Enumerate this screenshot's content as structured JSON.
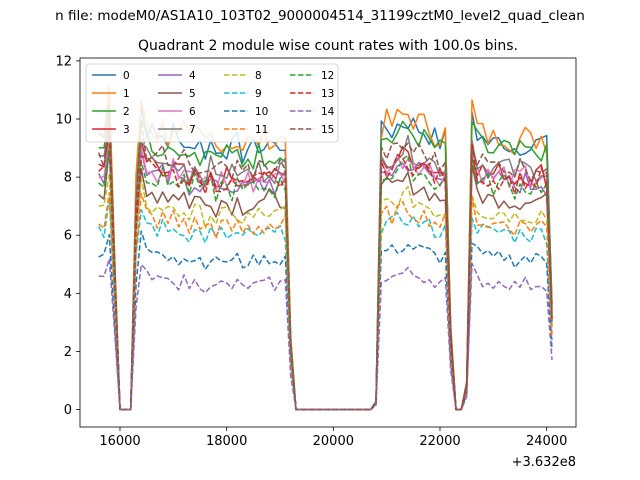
{
  "chart_data": {
    "type": "line",
    "suptitle": "n file: modeM0/AS1A10_103T02_9000004514_31199cztM0_level2_quad_clean",
    "title": "Quadrant 2 module wise count rates with 100.0s bins.",
    "xlabel": "",
    "ylabel": "",
    "x_offset_label": "+3.632e8",
    "xlim": [
      15250,
      24550
    ],
    "ylim": [
      -0.6,
      12.1
    ],
    "xticks": [
      16000,
      18000,
      20000,
      22000,
      24000
    ],
    "xtick_labels": [
      "16000",
      "18000",
      "20000",
      "22000",
      "24000"
    ],
    "yticks": [
      0,
      2,
      4,
      6,
      8,
      10,
      12
    ],
    "ytick_labels": [
      "0",
      "2",
      "4",
      "6",
      "8",
      "10",
      "12"
    ],
    "grid": false,
    "legend": {
      "placement": "top-left",
      "columns": 4
    },
    "x_start": 15600,
    "bin": 100,
    "series": [
      {
        "name": "0",
        "color": "#1f77b4",
        "dash": "solid",
        "level": 9.5
      },
      {
        "name": "1",
        "color": "#ff7f0e",
        "dash": "solid",
        "level": 9.7
      },
      {
        "name": "2",
        "color": "#2ca02c",
        "dash": "solid",
        "level": 9.2
      },
      {
        "name": "3",
        "color": "#d62728",
        "dash": "solid",
        "level": 8.4
      },
      {
        "name": "4",
        "color": "#9467bd",
        "dash": "solid",
        "level": 8.1
      },
      {
        "name": "5",
        "color": "#8c564b",
        "dash": "solid",
        "level": 7.5
      },
      {
        "name": "6",
        "color": "#e377c2",
        "dash": "solid",
        "level": 8.3
      },
      {
        "name": "7",
        "color": "#7f7f7f",
        "dash": "solid",
        "level": 8.6
      },
      {
        "name": "8",
        "color": "#bcbd22",
        "dash": "dashed",
        "level": 7.0
      },
      {
        "name": "9",
        "color": "#17becf",
        "dash": "dashed",
        "level": 6.3
      },
      {
        "name": "10",
        "color": "#1f77b4",
        "dash": "dashed",
        "level": 5.4
      },
      {
        "name": "11",
        "color": "#ff7f0e",
        "dash": "dashed",
        "level": 6.6
      },
      {
        "name": "12",
        "color": "#2ca02c",
        "dash": "dashed",
        "level": 8.0
      },
      {
        "name": "13",
        "color": "#d62728",
        "dash": "dashed",
        "level": 8.2
      },
      {
        "name": "14",
        "color": "#9467bd",
        "dash": "dashed",
        "level": 4.5
      },
      {
        "name": "15",
        "color": "#8c564b",
        "dash": "dashed",
        "level": 8.7
      }
    ],
    "profile": [
      {
        "x": 15600,
        "f": 1.0
      },
      {
        "x": 15700,
        "f": 0.98
      },
      {
        "x": 15800,
        "f": 1.15
      },
      {
        "x": 15900,
        "f": 0.55
      },
      {
        "x": 16000,
        "f": 0.0
      },
      {
        "x": 16100,
        "f": 0.0
      },
      {
        "x": 16200,
        "f": 0.0
      },
      {
        "x": 16300,
        "f": 0.8
      },
      {
        "x": 16400,
        "f": 1.1
      },
      {
        "x": 16500,
        "f": 1.02
      },
      {
        "x": 16600,
        "f": 1.0
      },
      {
        "x": 16700,
        "f": 0.98
      },
      {
        "x": 16800,
        "f": 1.0
      },
      {
        "x": 16900,
        "f": 0.97
      },
      {
        "x": 17000,
        "f": 1.01
      },
      {
        "x": 17100,
        "f": 0.96
      },
      {
        "x": 17200,
        "f": 0.99
      },
      {
        "x": 17300,
        "f": 0.95
      },
      {
        "x": 17400,
        "f": 0.97
      },
      {
        "x": 17500,
        "f": 0.96
      },
      {
        "x": 17600,
        "f": 0.94
      },
      {
        "x": 17700,
        "f": 0.97
      },
      {
        "x": 17800,
        "f": 0.93
      },
      {
        "x": 17900,
        "f": 0.96
      },
      {
        "x": 18000,
        "f": 0.95
      },
      {
        "x": 18100,
        "f": 0.94
      },
      {
        "x": 18200,
        "f": 0.96
      },
      {
        "x": 18300,
        "f": 0.93
      },
      {
        "x": 18400,
        "f": 0.95
      },
      {
        "x": 18500,
        "f": 0.94
      },
      {
        "x": 18600,
        "f": 0.96
      },
      {
        "x": 18700,
        "f": 0.95
      },
      {
        "x": 18800,
        "f": 0.97
      },
      {
        "x": 18900,
        "f": 0.95
      },
      {
        "x": 19000,
        "f": 0.96
      },
      {
        "x": 19100,
        "f": 0.97
      },
      {
        "x": 19200,
        "f": 0.26
      },
      {
        "x": 19300,
        "f": 0.0
      },
      {
        "x": 19400,
        "f": 0.0
      },
      {
        "x": 19500,
        "f": 0.0
      },
      {
        "x": 19600,
        "f": 0.0
      },
      {
        "x": 19700,
        "f": 0.0
      },
      {
        "x": 19800,
        "f": 0.0
      },
      {
        "x": 19900,
        "f": 0.0
      },
      {
        "x": 20000,
        "f": 0.0
      },
      {
        "x": 20100,
        "f": 0.0
      },
      {
        "x": 20200,
        "f": 0.0
      },
      {
        "x": 20300,
        "f": 0.0
      },
      {
        "x": 20400,
        "f": 0.0
      },
      {
        "x": 20500,
        "f": 0.0
      },
      {
        "x": 20600,
        "f": 0.0
      },
      {
        "x": 20700,
        "f": 0.0
      },
      {
        "x": 20800,
        "f": 0.03
      },
      {
        "x": 20900,
        "f": 1.0
      },
      {
        "x": 21000,
        "f": 1.02
      },
      {
        "x": 21100,
        "f": 1.01
      },
      {
        "x": 21200,
        "f": 1.03
      },
      {
        "x": 21300,
        "f": 1.04
      },
      {
        "x": 21400,
        "f": 1.05
      },
      {
        "x": 21500,
        "f": 1.03
      },
      {
        "x": 21600,
        "f": 1.02
      },
      {
        "x": 21700,
        "f": 1.01
      },
      {
        "x": 21800,
        "f": 1.0
      },
      {
        "x": 21900,
        "f": 0.98
      },
      {
        "x": 22000,
        "f": 0.97
      },
      {
        "x": 22100,
        "f": 0.98
      },
      {
        "x": 22200,
        "f": 0.3
      },
      {
        "x": 22300,
        "f": 0.0
      },
      {
        "x": 22400,
        "f": 0.0
      },
      {
        "x": 22500,
        "f": 0.1
      },
      {
        "x": 22600,
        "f": 1.08
      },
      {
        "x": 22700,
        "f": 1.0
      },
      {
        "x": 22800,
        "f": 0.98
      },
      {
        "x": 22900,
        "f": 0.97
      },
      {
        "x": 23000,
        "f": 0.96
      },
      {
        "x": 23100,
        "f": 0.97
      },
      {
        "x": 23200,
        "f": 0.98
      },
      {
        "x": 23300,
        "f": 0.96
      },
      {
        "x": 23400,
        "f": 0.95
      },
      {
        "x": 23500,
        "f": 0.96
      },
      {
        "x": 23600,
        "f": 0.97
      },
      {
        "x": 23700,
        "f": 0.95
      },
      {
        "x": 23800,
        "f": 0.96
      },
      {
        "x": 23900,
        "f": 0.97
      },
      {
        "x": 24000,
        "f": 0.95
      },
      {
        "x": 24100,
        "f": 0.38
      }
    ]
  }
}
